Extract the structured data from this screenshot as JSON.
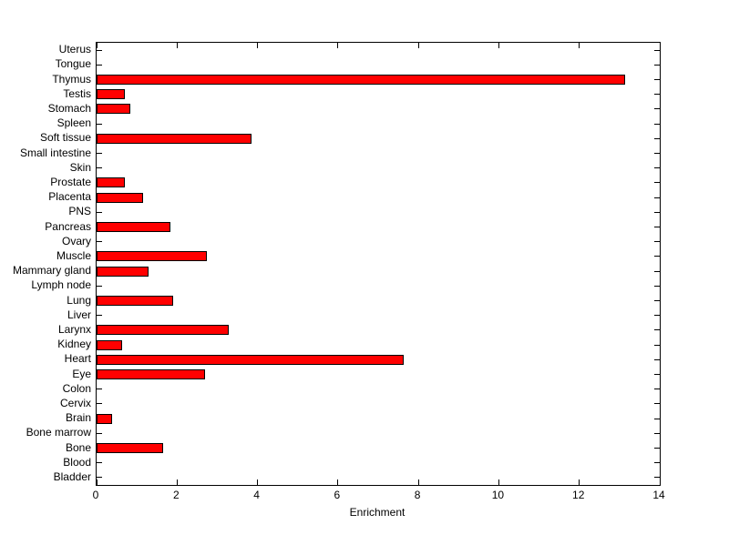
{
  "chart_data": {
    "type": "bar",
    "orientation": "horizontal",
    "title": "",
    "xlabel": "Enrichment",
    "ylabel": "",
    "xlim": [
      0,
      14
    ],
    "xticks": [
      0,
      2,
      4,
      6,
      8,
      10,
      12,
      14
    ],
    "grid": false,
    "legend": null,
    "bar_color": "#FF0000",
    "bar_edge_color": "#000000",
    "axis_color": "#000000",
    "background_color": "#FFFFFF",
    "categories": [
      "Uterus",
      "Tongue",
      "Thymus",
      "Testis",
      "Stomach",
      "Spleen",
      "Soft tissue",
      "Small intestine",
      "Skin",
      "Prostate",
      "Placenta",
      "PNS",
      "Pancreas",
      "Ovary",
      "Muscle",
      "Mammary gland",
      "Lymph node",
      "Lung",
      "Liver",
      "Larynx",
      "Kidney",
      "Heart",
      "Eye",
      "Colon",
      "Cervix",
      "Brain",
      "Bone marrow",
      "Bone",
      "Blood",
      "Bladder"
    ],
    "values": [
      0,
      0,
      13.1,
      0.65,
      0.8,
      0,
      3.8,
      0,
      0,
      0.65,
      1.1,
      0,
      1.8,
      0,
      2.7,
      1.25,
      0,
      1.85,
      0,
      3.25,
      0.6,
      7.6,
      2.65,
      0,
      0,
      0.35,
      0,
      1.6,
      0,
      0
    ]
  }
}
